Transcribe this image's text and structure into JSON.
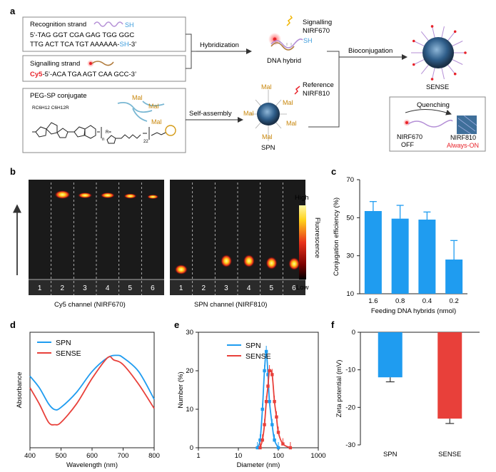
{
  "panel_a": {
    "label": "a",
    "recognition_title": "Recognition strand",
    "recognition_sh": "SH",
    "recognition_seq1": "5’-TAG GGT CGA GAG TGG GGC",
    "recognition_seq2_a": "TTG ACT TCA TGT AAAAAA-",
    "recognition_seq2_sh": "SH",
    "recognition_seq2_b": "-3’",
    "signalling_title": "Signalling strand",
    "signalling_cy5": "Cy5",
    "signalling_seq": "-5’-ACA TGA AGT CAA GCC-3’",
    "peg_title": "PEG-SP conjugate",
    "hybridization": "Hybridization",
    "self_assembly": "Self-assembly",
    "bioconjugation": "Bioconjugation",
    "dna_hybrid": "DNA hybrid",
    "signalling_label": "Signalling",
    "nirf670": "NIRF670",
    "sh_label": "SH",
    "reference_label": "Reference",
    "nirf810": "NIRF810",
    "spn": "SPN",
    "sense": "SENSE",
    "mal": "Mal",
    "quenching": "Quenching",
    "nirf670_off_1": "NIRF670",
    "nirf670_off_2": "OFF",
    "nirf810_on_1": "NIRF810",
    "nirf810_on_2": "Always-ON",
    "chem_side": "RC6H12 C6H12R",
    "chem_r": "R=",
    "chem_n": "n",
    "chem_22": "22"
  },
  "panel_b": {
    "label": "b",
    "high": "High",
    "low": "Low",
    "fluorescence": "Fluorescence",
    "lanes": [
      "1",
      "2",
      "3",
      "4",
      "5",
      "6"
    ],
    "cy5_caption": "Cy5 channel (NIRF670)",
    "spn_caption": "SPN channel (NIRF810)"
  },
  "colors": {
    "spn": "#1f9cf0",
    "sense": "#e8403a",
    "cy5_red": "#e8232a",
    "sh_blue": "#3a9bdc",
    "mal_orange": "#c8860a"
  },
  "chart_data": [
    {
      "panel": "c",
      "type": "bar",
      "categories": [
        "1.6",
        "0.8",
        "0.4",
        "0.2"
      ],
      "values": [
        53.5,
        49.5,
        49,
        28
      ],
      "errors": [
        5,
        7,
        4,
        10
      ],
      "xlabel": "Feeding DNA hybrids (nmol)",
      "ylabel": "Conjugation efficiency (%)",
      "ylim": [
        10,
        70
      ],
      "yticks": [
        "10",
        "30",
        "50",
        "70"
      ]
    },
    {
      "panel": "d",
      "type": "line",
      "xlabel": "Wavelength (nm)",
      "ylabel": "Absorbance",
      "xlim": [
        400,
        800
      ],
      "xticks": [
        "400",
        "500",
        "600",
        "700",
        "800"
      ],
      "series": [
        {
          "name": "SPN",
          "x": [
            400,
            430,
            460,
            480,
            500,
            550,
            600,
            650,
            680,
            700,
            750,
            800
          ],
          "y": [
            0.62,
            0.52,
            0.38,
            0.33,
            0.35,
            0.48,
            0.66,
            0.78,
            0.8,
            0.78,
            0.66,
            0.42
          ]
        },
        {
          "name": "SENSE",
          "x": [
            400,
            430,
            460,
            480,
            500,
            550,
            600,
            650,
            670,
            700,
            750,
            800
          ],
          "y": [
            0.52,
            0.38,
            0.22,
            0.2,
            0.22,
            0.38,
            0.6,
            0.78,
            0.76,
            0.72,
            0.55,
            0.34
          ]
        }
      ]
    },
    {
      "panel": "e",
      "type": "line",
      "xlabel": "Diameter (nm)",
      "ylabel": "Number (%)",
      "ylim": [
        0,
        30
      ],
      "yticks": [
        "0",
        "10",
        "20",
        "30"
      ],
      "xticks": [
        "1",
        "10",
        "100",
        "1000"
      ],
      "series": [
        {
          "name": "SPN",
          "x": [
            30,
            35,
            40,
            45,
            50,
            55,
            60,
            70,
            80,
            100
          ],
          "y": [
            0,
            2,
            10,
            20,
            25,
            19,
            12,
            6,
            2,
            0
          ]
        },
        {
          "name": "SENSE",
          "x": [
            35,
            40,
            45,
            50,
            55,
            60,
            70,
            80,
            90,
            100,
            130,
            200
          ],
          "y": [
            0,
            2,
            6,
            12,
            16,
            20,
            19,
            12,
            8,
            4,
            1,
            0
          ]
        }
      ]
    },
    {
      "panel": "f",
      "type": "bar",
      "categories": [
        "SPN",
        "SENSE"
      ],
      "values": [
        -12,
        -23
      ],
      "errors": [
        1.2,
        1.3
      ],
      "ylabel": "Zeta potential (mV)",
      "ylim": [
        -30,
        0
      ],
      "yticks": [
        "0",
        "-10",
        "-20",
        "-30"
      ]
    }
  ]
}
